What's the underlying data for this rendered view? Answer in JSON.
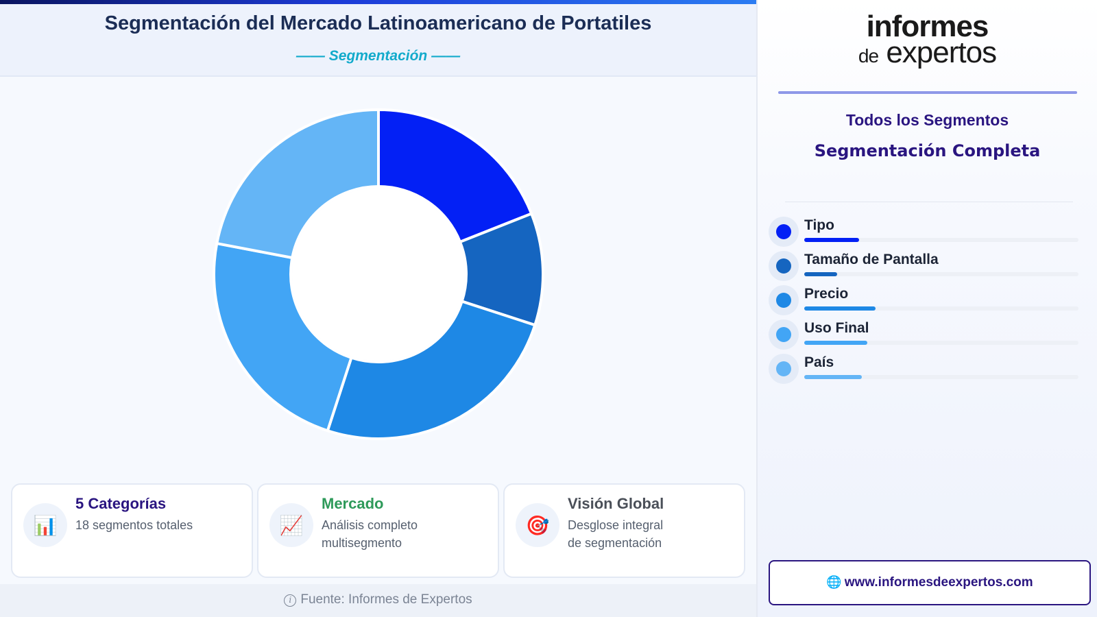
{
  "header": {
    "title": "Segmentación del Mercado Latinoamericano de Portatiles",
    "subtitle": "—— Segmentación ——"
  },
  "chart_data": {
    "type": "pie",
    "variant": "donut",
    "categories": [
      "Tipo",
      "Tamaño de Pantalla",
      "Precio",
      "Uso Final",
      "País"
    ],
    "values": [
      19,
      11,
      25,
      23,
      22
    ],
    "colors": [
      "#0320f5",
      "#1565c0",
      "#1e88e5",
      "#42a5f5",
      "#64b5f6"
    ],
    "title": "",
    "legend_position": "right"
  },
  "cards": [
    {
      "icon": "bar-chart-icon",
      "glyph": "📊",
      "title": "5 Categorías",
      "title_color": "#2a1580",
      "desc": "18 segmentos totales"
    },
    {
      "icon": "line-chart-icon",
      "glyph": "📈",
      "title": "Mercado",
      "title_color": "#2e9a5a",
      "desc": "Análisis completo\nmultisegmento"
    },
    {
      "icon": "target-icon",
      "glyph": "🎯",
      "title": "Visión Global",
      "title_color": "#4a4f58",
      "desc": "Desglose integral\nde segmentación"
    }
  ],
  "footer": {
    "text": "Fuente: Informes de Expertos"
  },
  "logo": {
    "line1": "informes",
    "line2_small": "de",
    "line2_large": "expertos"
  },
  "right_panel": {
    "title1": "Todos los Segmentos",
    "title2": "Segmentación Completa"
  },
  "legend": {
    "items": [
      {
        "label": "Tipo",
        "color": "#0320f5",
        "fill": 0.2
      },
      {
        "label": "Tamaño de Pantalla",
        "color": "#1565c0",
        "fill": 0.12
      },
      {
        "label": "Precio",
        "color": "#1e88e5",
        "fill": 0.26
      },
      {
        "label": "Uso Final",
        "color": "#42a5f5",
        "fill": 0.23
      },
      {
        "label": "País",
        "color": "#64b5f6",
        "fill": 0.21
      }
    ]
  },
  "website": {
    "url": "www.informesdeexpertos.com",
    "icon": "globe-icon"
  }
}
